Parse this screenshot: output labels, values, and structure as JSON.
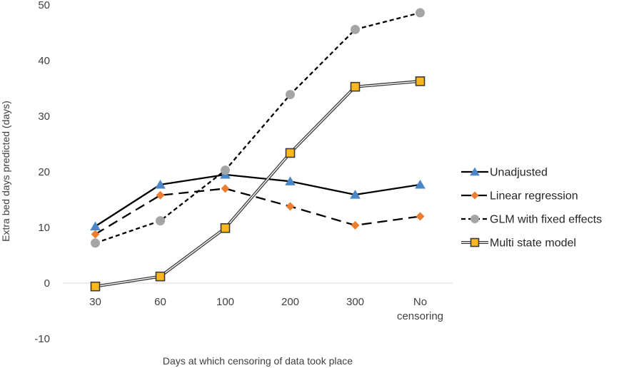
{
  "chart_data": {
    "type": "line",
    "categories": [
      "30",
      "60",
      "100",
      "200",
      "300",
      "No censoring"
    ],
    "xlabel": "Days at which censoring of data took place",
    "ylabel": "Extra bed days predicted (days)",
    "ylim": [
      -10,
      50
    ],
    "yticks": [
      -10,
      0,
      10,
      20,
      30,
      40,
      50
    ],
    "grid": false,
    "legend_position": "right",
    "series": [
      {
        "name": "Unadjusted",
        "values": [
          10.2,
          17.7,
          19.5,
          18.3,
          15.9,
          17.7
        ],
        "color": "#4a86c8",
        "line_style": "solid",
        "marker": "triangle"
      },
      {
        "name": "Linear regression",
        "values": [
          8.8,
          15.8,
          17.0,
          13.8,
          10.4,
          12.0
        ],
        "color": "#ed7d31",
        "line_style": "long-dash",
        "marker": "diamond"
      },
      {
        "name": "GLM with fixed effects",
        "values": [
          7.2,
          11.2,
          20.3,
          33.9,
          45.6,
          48.6
        ],
        "color": "#a5a5a5",
        "line_style": "short-dash",
        "marker": "circle"
      },
      {
        "name": "Multi state model",
        "values": [
          -0.6,
          1.2,
          9.9,
          23.4,
          35.3,
          36.3
        ],
        "color": "#ffb81c",
        "line_style": "double-solid",
        "marker": "square"
      }
    ]
  }
}
